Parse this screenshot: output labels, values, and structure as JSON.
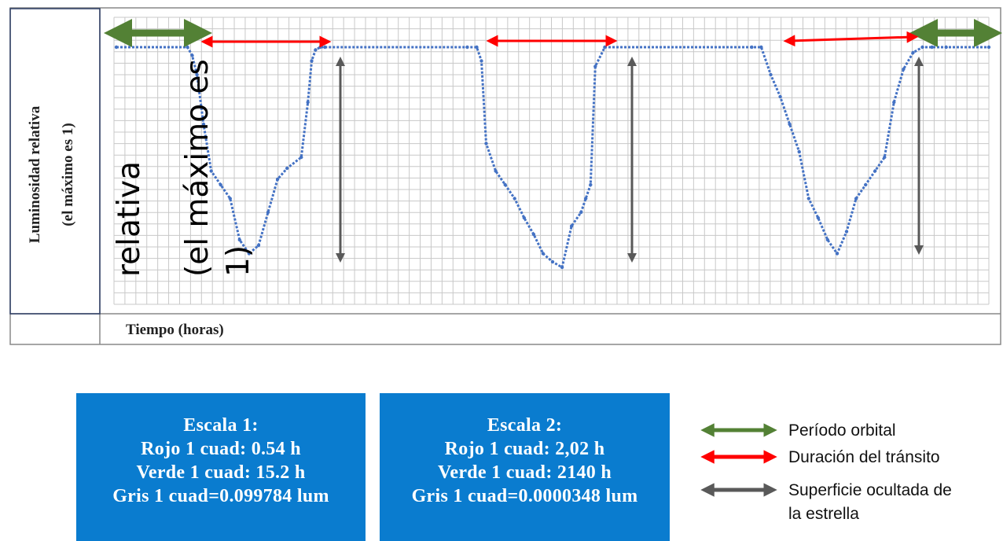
{
  "chart_data": {
    "type": "line",
    "ylabel_line1": "Luminosidad relativa",
    "ylabel_line2": "(el máximo es 1)",
    "xlabel": "Tiempo (horas)",
    "overlay_text_1": "relativa",
    "overlay_text_2": "(el máximo es",
    "overlay_text_3": "1)",
    "grid": true,
    "series": [
      {
        "color": "#4472c4",
        "x": [
          0,
          7.5,
          8.0,
          8.5,
          9.2,
          10.0,
          11.0,
          12.0,
          13.0,
          14.0,
          15.0,
          16.0,
          17.0,
          18.0,
          19.5,
          20.2,
          20.6,
          21.0,
          21.5,
          22.0,
          37.0,
          38.0,
          38.5,
          39.0,
          40.0,
          41.0,
          42.0,
          43.0,
          44.0,
          45.0,
          46.0,
          47.0,
          48.0,
          49.0,
          49.5,
          50.0,
          50.5,
          51.5,
          67.0,
          68.0,
          69.0,
          70.0,
          71.0,
          72.0,
          73.0,
          74.0,
          75.0,
          76.0,
          77.0,
          78.0,
          79.0,
          80.0,
          81.0,
          82.0,
          83.0,
          84.0,
          85.0,
          86.0,
          87.5,
          92.0
        ],
        "y": [
          1.0,
          1.0,
          0.97,
          0.9,
          0.72,
          0.55,
          0.5,
          0.45,
          0.3,
          0.25,
          0.28,
          0.4,
          0.52,
          0.56,
          0.6,
          0.8,
          0.95,
          0.99,
          1.0,
          1.0,
          1.0,
          1.0,
          0.95,
          0.65,
          0.55,
          0.5,
          0.45,
          0.38,
          0.32,
          0.25,
          0.22,
          0.2,
          0.35,
          0.4,
          0.45,
          0.5,
          0.93,
          1.0,
          1.0,
          1.0,
          0.9,
          0.82,
          0.72,
          0.62,
          0.45,
          0.38,
          0.3,
          0.25,
          0.33,
          0.45,
          0.5,
          0.55,
          0.6,
          0.8,
          0.92,
          0.98,
          1.0,
          1.0,
          1.0,
          1.0
        ]
      }
    ],
    "annotations": {
      "green_arrow_color": "#538135",
      "red_arrow_color": "#ff0000",
      "gray_arrow_color": "#595959"
    }
  },
  "boxes": [
    {
      "title": "Escala 1:",
      "line1": "Rojo 1 cuad: 0.54 h",
      "line2": "Verde 1 cuad: 15.2 h",
      "line3": "Gris 1 cuad=0.099784 lum"
    },
    {
      "title": "Escala 2:",
      "line1": "Rojo 1 cuad: 2,02 h",
      "line2": "Verde 1 cuad: 2140 h",
      "line3": "Gris 1 cuad=0.0000348 lum"
    }
  ],
  "legend": [
    {
      "label": "Período orbital",
      "color": "#538135"
    },
    {
      "label": "Duración del tránsito",
      "color": "#ff0000"
    },
    {
      "label": "Superficie ocultada de",
      "label2": "la estrella",
      "color": "#595959"
    }
  ]
}
